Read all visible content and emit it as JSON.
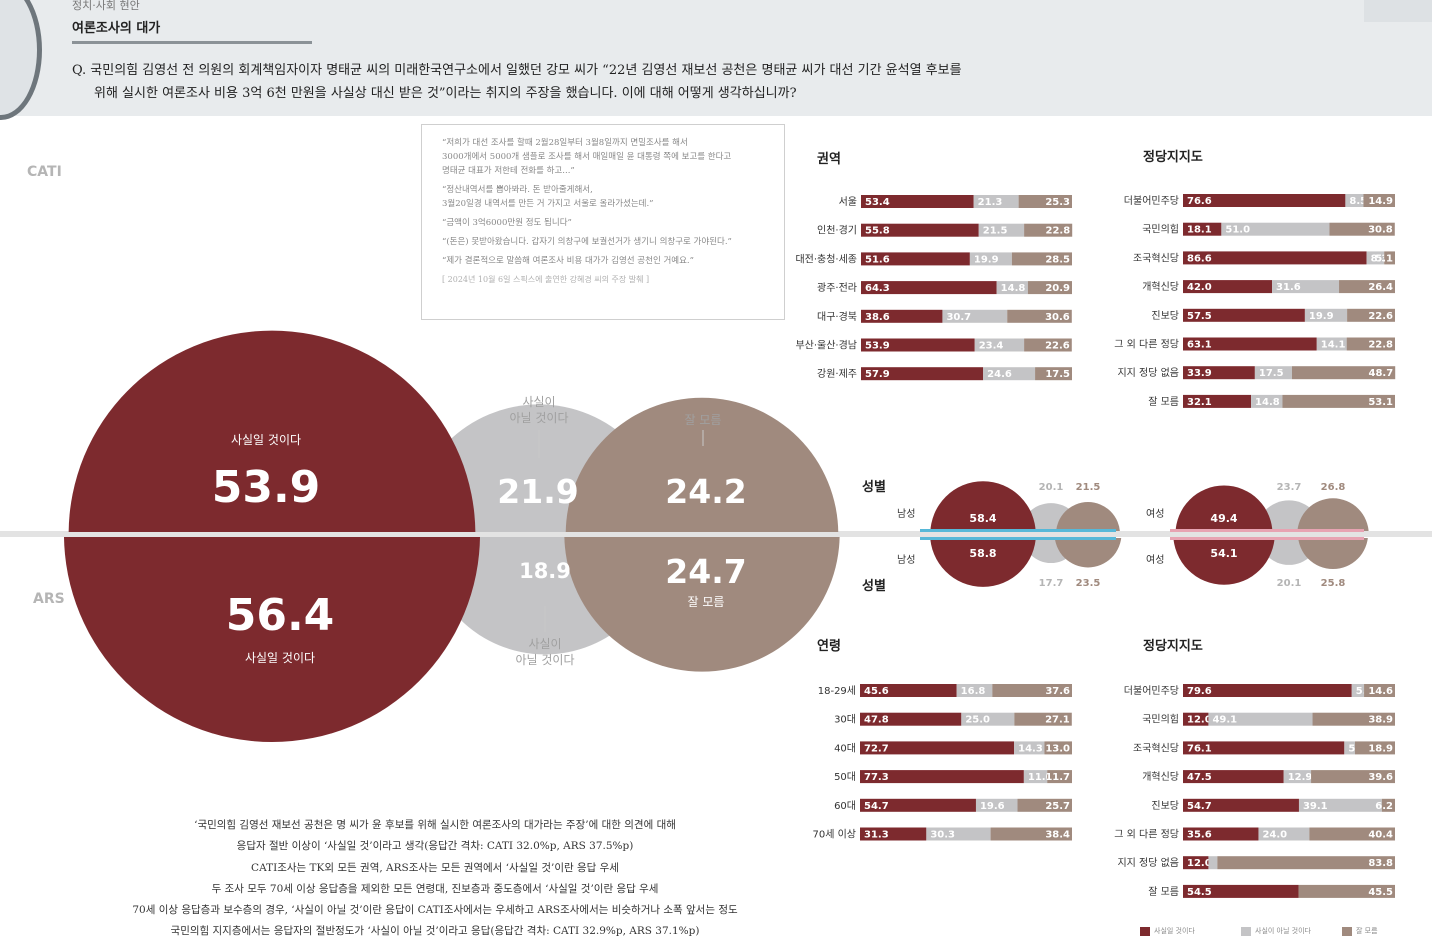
{
  "header": {
    "breadcrumb": "정치·사회 현안",
    "section_title": "여론조사의 대가",
    "question_line1": "Q. 국민의힘 김영선 전 의원의 회계책임자이자 명태균 씨의 미래한국연구소에서 일했던 강모 씨가 “22년 김영선 재보선 공천은 명태균 씨가 대선 기간 윤석열 후보를",
    "question_line2": "위해 실시한 여론조사 비용 3억 6천 만원을 사실상 대신 받은 것”이라는 취지의 주장을 했습니다. 이에 대해 어떻게 생각하십니까?"
  },
  "labels": {
    "cati": "CATI",
    "ars": "ARS"
  },
  "quote": {
    "lines": [
      "“저희가 대선 조사를 할때 2월28일부터 3월8일까지 면밀조사를 해서\n3000개에서 5000개 샘플로 조사를 해서 매일매일 윤 대통령 쪽에 보고를 한다고\n명태균 대표가 저한테 전화를 하고...”",
      "“정산내역서를 뽑아봐라. 돈 받아줄게해서,\n3월20일경 내역서를 만든 거 가지고 서울로 올라가셨는데.”",
      "“금액이 3억6000만원 정도 됩니다”",
      "“(돈은) 못받아왔습니다. 갑자기 의창구에 보궐선거가 생기니 의창구로 가야된다.”",
      "“제가 결론적으로 말씀해 여론조사 비용 대가가 김영선 공천인 거예요.”"
    ],
    "source": "[ 2024년 10월 6일 스픽스에 출연한 강혜경 씨의 주장 발췌 ]"
  },
  "colors": {
    "yes": "#7d2a2e",
    "no": "#c4c4c6",
    "dk": "#a08a7e",
    "male_line": "#56b8d8",
    "female_line": "#e7a3b2"
  },
  "summary": [
    "‘국민의힘 김영선 재보선 공천은 명 씨가 윤 후보를 위해 실시한 여론조사의 대가라는 주장’에 대한 의견에 대해",
    "응답자 절반 이상이 ‘사실일 것’이라고 생각(응답간 격차: CATI 32.0%p, ARS 37.5%p)",
    "CATI조사는 TK외 모든 권역, ARS조사는 모든 권역에서 ‘사실일 것’이란 응답 우세",
    "두 조사 모두 70세 이상 응답층을 제외한 모든 연령대, 진보층과 중도층에서 ‘사실일 것’이란 응답 우세",
    "70세 이상 응답층과 보수층의 경우, ‘사실이 아닐 것’이란 응답이 CATI조사에서는 우세하고 ARS조사에서는 비슷하거나 소폭 앞서는 정도",
    "국민의힘 지지층에서는 응답자의 절반정도가 ‘사실이 아닐 것’이라고 응답(응답간 격차: CATI 32.9%p, ARS 37.1%p)"
  ],
  "legend": {
    "yes": "사실일 것이다",
    "no": "사실이 아닐 것이다",
    "dk": "잘 모름"
  },
  "chart_data": [
    {
      "id": "overall",
      "type": "bubble",
      "series": [
        {
          "name": "CATI",
          "values": {
            "사실일 것이다": 53.9,
            "사실이 아닐 것이다": 21.9,
            "잘 모름": 24.2
          }
        },
        {
          "name": "ARS",
          "values": {
            "사실일 것이다": 56.4,
            "사실이 아닐 것이다": 18.9,
            "잘 모름": 24.7
          }
        }
      ],
      "top_labels": {
        "yes": "사실일 것이다",
        "no": "사실이\n아닐 것이다",
        "dk": "잘 모름"
      },
      "bottom_labels": {
        "yes": "사실일 것이다",
        "no": "사실이\n아닐 것이다",
        "dk": "잘 모름"
      }
    },
    {
      "id": "region_cati",
      "type": "stacked_bar",
      "title": "권역",
      "categories": [
        "서울",
        "인천·경기",
        "대전·충청·세종",
        "광주·전라",
        "대구·경북",
        "부산·울산·경남",
        "강원·제주"
      ],
      "series": [
        {
          "name": "사실일 것이다",
          "values": [
            53.4,
            55.8,
            51.6,
            64.3,
            38.6,
            53.9,
            57.9
          ]
        },
        {
          "name": "사실이 아닐 것이다",
          "values": [
            21.3,
            21.5,
            19.9,
            14.8,
            30.7,
            23.4,
            24.6
          ]
        },
        {
          "name": "잘 모름",
          "values": [
            25.3,
            22.8,
            28.5,
            20.9,
            30.6,
            22.6,
            17.5
          ]
        }
      ]
    },
    {
      "id": "party_cati",
      "type": "stacked_bar",
      "title": "정당지지도",
      "categories": [
        "더불어민주당",
        "국민의힘",
        "조국혁신당",
        "개혁신당",
        "진보당",
        "그 외 다른 정당",
        "지지 정당 없음",
        "잘 모름"
      ],
      "series": [
        {
          "name": "사실일 것이다",
          "values": [
            76.6,
            18.1,
            86.6,
            42.0,
            57.5,
            63.1,
            33.9,
            32.1
          ]
        },
        {
          "name": "사실이 아닐 것이다",
          "values": [
            8.5,
            51.0,
            8.3,
            31.6,
            19.9,
            14.1,
            17.5,
            14.8
          ]
        },
        {
          "name": "잘 모름",
          "values": [
            14.9,
            30.8,
            5.1,
            26.4,
            22.6,
            22.8,
            48.7,
            53.1
          ]
        }
      ]
    },
    {
      "id": "gender",
      "type": "bubble",
      "title": "성별",
      "title_bottom": "성별",
      "groups": [
        {
          "name": "남성",
          "cati": [
            58.4,
            20.1,
            21.5
          ],
          "ars": [
            58.8,
            17.7,
            23.5
          ]
        },
        {
          "name": "여성",
          "cati": [
            49.4,
            23.7,
            26.8
          ],
          "ars": [
            54.1,
            20.1,
            25.8
          ]
        }
      ]
    },
    {
      "id": "age_ars",
      "type": "stacked_bar",
      "title": "연령",
      "categories": [
        "18-29세",
        "30대",
        "40대",
        "50대",
        "60대",
        "70세 이상"
      ],
      "series": [
        {
          "name": "사실일 것이다",
          "values": [
            45.6,
            47.8,
            72.7,
            77.3,
            54.7,
            31.3
          ]
        },
        {
          "name": "사실이 아닐 것이다",
          "values": [
            16.8,
            25.0,
            14.3,
            11.0,
            19.6,
            30.3
          ]
        },
        {
          "name": "잘 모름",
          "values": [
            37.6,
            27.1,
            13.0,
            11.7,
            25.7,
            38.4
          ]
        }
      ]
    },
    {
      "id": "party_ars",
      "type": "stacked_bar",
      "title": "정당지지도",
      "categories": [
        "더불어민주당",
        "국민의힘",
        "조국혁신당",
        "개혁신당",
        "진보당",
        "그 외 다른 정당",
        "지지 정당 없음",
        "잘 모름"
      ],
      "series": [
        {
          "name": "사실일 것이다",
          "values": [
            79.6,
            12.0,
            76.1,
            47.5,
            54.7,
            35.6,
            12.0,
            54.5
          ]
        },
        {
          "name": "사실이 아닐 것이다",
          "values": [
            5.8,
            49.1,
            5.0,
            12.9,
            39.1,
            24.0,
            4.2,
            0.0
          ]
        },
        {
          "name": "잘 모름",
          "values": [
            14.6,
            38.9,
            18.9,
            39.6,
            6.2,
            40.4,
            83.8,
            45.5
          ]
        }
      ],
      "hidden_labels": [
        [
          6,
          1
        ],
        [
          7,
          1
        ]
      ]
    }
  ]
}
